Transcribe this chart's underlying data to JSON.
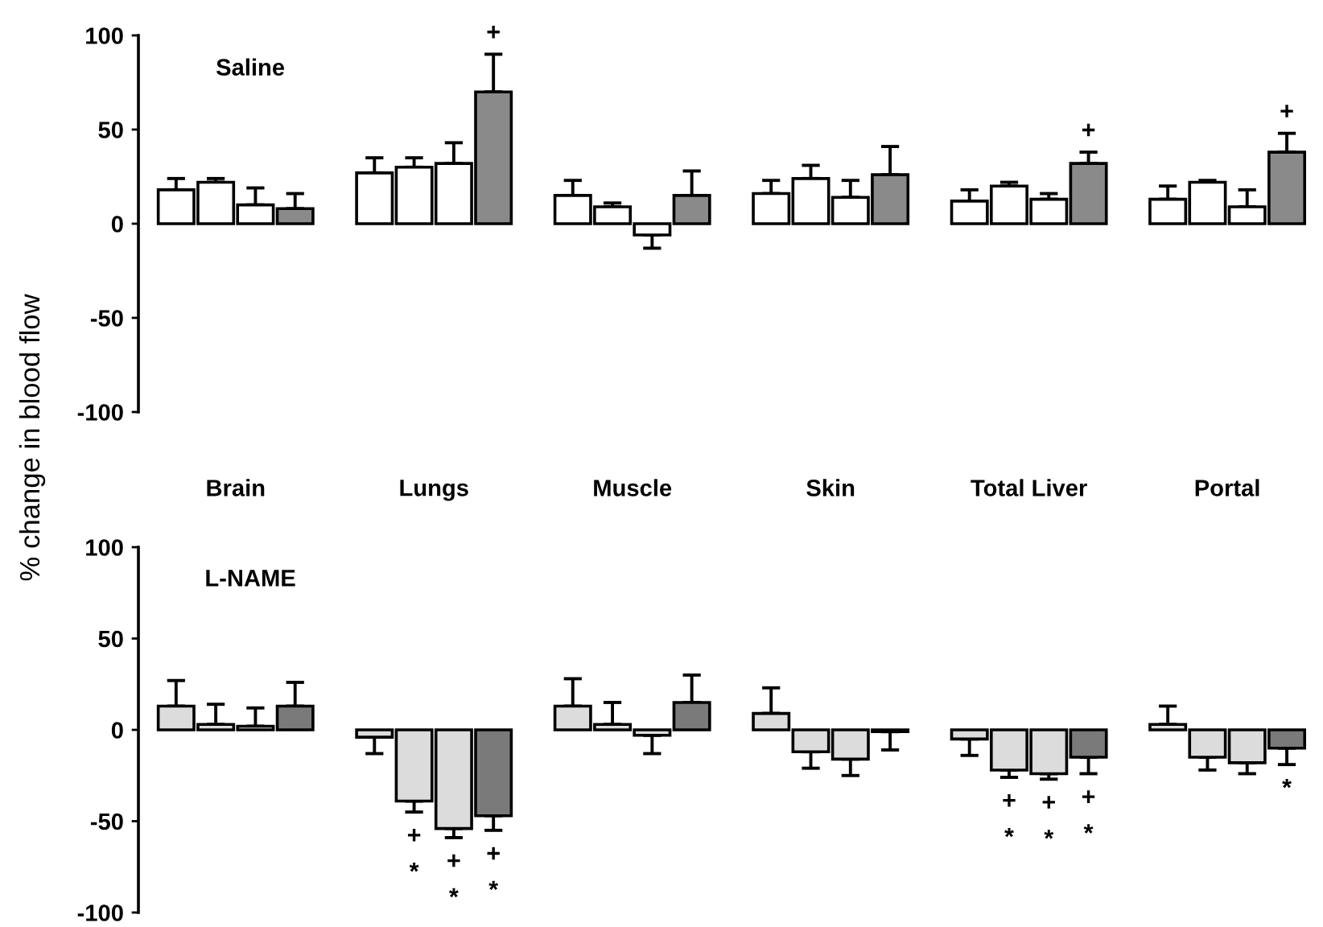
{
  "chart_data": [
    {
      "type": "bar",
      "title": "Saline",
      "ylabel": "% change in blood flow",
      "categories": [
        "Brain",
        "Lungs",
        "Muscle",
        "Skin",
        "Total Liver",
        "Portal"
      ],
      "ylim": [
        -100,
        100
      ],
      "yticks": [
        100,
        50,
        0,
        -50,
        -100
      ],
      "series": [
        {
          "color": "#ffffff",
          "values": [
            18,
            27,
            15,
            16,
            12,
            13
          ],
          "errors": [
            [
              18,
              24
            ],
            [
              27,
              35
            ],
            [
              15,
              23
            ],
            [
              16,
              23
            ],
            [
              12,
              18
            ],
            [
              13,
              20
            ]
          ]
        },
        {
          "color": "#ffffff",
          "values": [
            22,
            30,
            9,
            24,
            20,
            22
          ],
          "errors": [
            [
              22,
              24
            ],
            [
              30,
              35
            ],
            [
              9,
              11
            ],
            [
              24,
              31
            ],
            [
              20,
              22
            ],
            [
              22,
              23
            ]
          ]
        },
        {
          "color": "#ffffff",
          "values": [
            10,
            32,
            -6,
            14,
            13,
            9
          ],
          "errors": [
            [
              10,
              19
            ],
            [
              32,
              43
            ],
            [
              -13,
              -6
            ],
            [
              14,
              23
            ],
            [
              13,
              16
            ],
            [
              9,
              18
            ]
          ]
        },
        {
          "color": "#8a8a8a",
          "values": [
            8,
            70,
            15,
            26,
            32,
            38
          ],
          "errors": [
            [
              8,
              16
            ],
            [
              70,
              90
            ],
            [
              15,
              28
            ],
            [
              26,
              41
            ],
            [
              32,
              38
            ],
            [
              38,
              48
            ]
          ],
          "value_labels": [
            null,
            "+",
            null,
            null,
            "+",
            "+"
          ]
        }
      ]
    },
    {
      "type": "bar",
      "title": "L-NAME",
      "categories": [
        null,
        null,
        null,
        null,
        null,
        null
      ],
      "ylim": [
        -100,
        100
      ],
      "yticks": [
        100,
        50,
        0,
        -50,
        -100
      ],
      "series": [
        {
          "color": "#dcdcdc",
          "values": [
            13,
            -4,
            13,
            9,
            -5,
            3
          ],
          "errors": [
            [
              13,
              27
            ],
            [
              -13,
              -4
            ],
            [
              13,
              28
            ],
            [
              9,
              23
            ],
            [
              -14,
              -5
            ],
            [
              3,
              13
            ]
          ]
        },
        {
          "color": "#dcdcdc",
          "values": [
            3,
            -39,
            3,
            -12,
            -22,
            -15
          ],
          "errors": [
            [
              3,
              14
            ],
            [
              -45,
              -39
            ],
            [
              3,
              15
            ],
            [
              -21,
              -12
            ],
            [
              -26,
              -22
            ],
            [
              -22,
              -15
            ]
          ],
          "value_labels": [
            null,
            "+\n*",
            null,
            null,
            "+\n*",
            null
          ]
        },
        {
          "color": "#dcdcdc",
          "values": [
            2,
            -54,
            -3,
            -16,
            -24,
            -18
          ],
          "errors": [
            [
              2,
              12
            ],
            [
              -59,
              -54
            ],
            [
              -13,
              -3
            ],
            [
              -25,
              -16
            ],
            [
              -27,
              -24
            ],
            [
              -24,
              -18
            ]
          ],
          "value_labels": [
            null,
            "+\n*",
            null,
            null,
            "+\n*",
            null
          ]
        },
        {
          "color": "#7a7a7a",
          "values": [
            13,
            -47,
            15,
            -1,
            -15,
            -10
          ],
          "errors": [
            [
              13,
              26
            ],
            [
              -55,
              -47
            ],
            [
              15,
              30
            ],
            [
              -11,
              -1
            ],
            [
              -24,
              -15
            ],
            [
              -19,
              -10
            ]
          ],
          "value_labels": [
            null,
            "+\n*",
            null,
            null,
            "+\n*",
            "*"
          ]
        }
      ]
    }
  ]
}
